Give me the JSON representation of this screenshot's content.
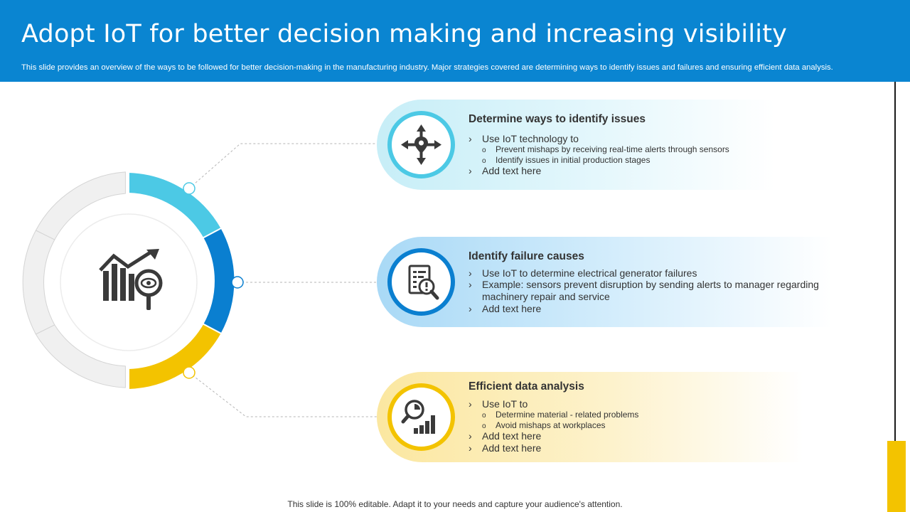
{
  "header": {
    "title": "Adopt IoT for better decision making and increasing visibility",
    "subtitle": "This slide provides an overview of the ways to be followed for better decision-making in the manufacturing industry. Major strategies covered are determining ways to identify issues and failures and ensuring efficient data analysis."
  },
  "colors": {
    "header": "#0a85d1",
    "cyan": "#4cc9e5",
    "blue": "#0a7fd0",
    "yellow": "#f3c300",
    "gray_segment": "#f0f0f0"
  },
  "center_icon": "growth-chart-eye-icon",
  "cards": [
    {
      "title": "Determine ways to identify issues",
      "icon": "location-arrows-icon",
      "bullets": [
        {
          "text": "Use IoT technology to",
          "sub": [
            "Prevent mishaps by receiving real-time alerts through sensors",
            "Identify issues in initial production stages"
          ]
        },
        {
          "text": "Add text here",
          "sub": []
        }
      ]
    },
    {
      "title": "Identify failure causes",
      "icon": "report-magnifier-icon",
      "bullets": [
        {
          "text": "Use IoT to determine electrical generator failures"
        },
        {
          "text": "Example:  sensors prevent disruption by sending alerts to manager regarding",
          "cont": "machinery repair and service"
        },
        {
          "text": "Add text here"
        }
      ]
    },
    {
      "title": "Efficient data analysis",
      "icon": "analytics-magnifier-icon",
      "bullets": [
        {
          "text": "Use IoT to",
          "sub": [
            "Determine material - related problems",
            "Avoid mishaps at workplaces"
          ]
        },
        {
          "text": "Add text here"
        },
        {
          "text": "Add text here"
        }
      ]
    }
  ],
  "footer": "This slide is 100% editable. Adapt it to your needs and capture your audience's attention."
}
